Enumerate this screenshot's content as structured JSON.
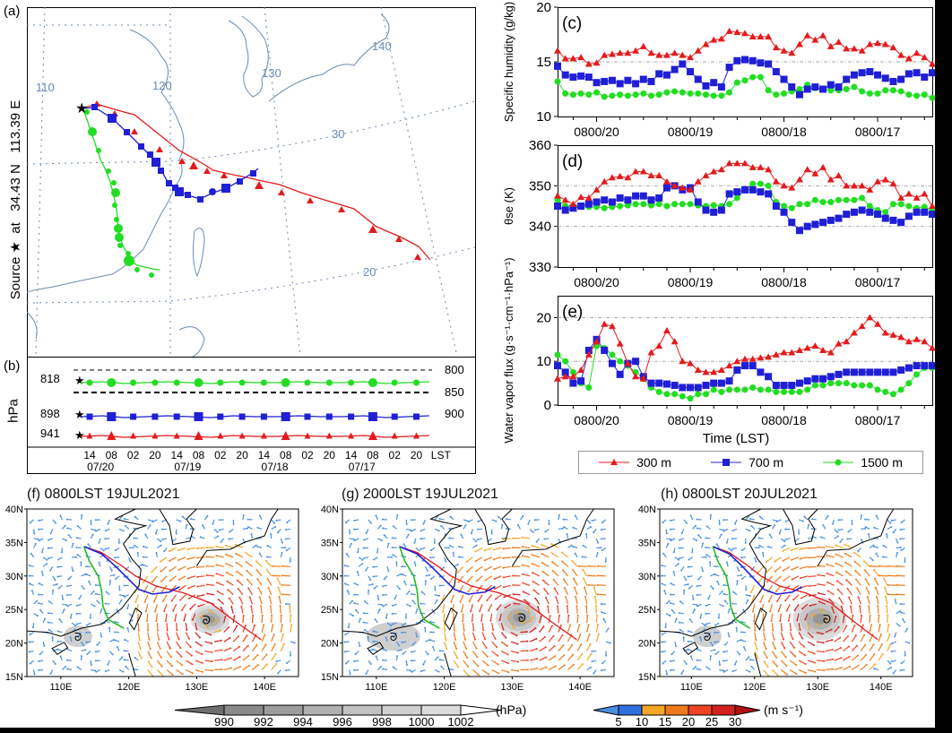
{
  "figure": {
    "panel_a": {
      "label": "(a)",
      "source_text": "Source ★  at   34.43 N   113.39 E",
      "grid_labels": {
        "lon": [
          "110",
          "120",
          "130",
          "140"
        ],
        "lat": [
          "30",
          "20"
        ]
      }
    },
    "panel_b": {
      "label": "(b)",
      "ylabel": "hPa",
      "start_pressures": [
        "818",
        "898",
        "941"
      ],
      "ref_levels": [
        "800",
        "850",
        "900"
      ],
      "hour_ticks": [
        "14",
        "08",
        "02",
        "20",
        "14",
        "08",
        "02",
        "20",
        "14",
        "08",
        "02",
        "20",
        "14",
        "08",
        "02",
        "20"
      ],
      "unit_label": "LST",
      "date_labels": [
        "07/20",
        "07/19",
        "07/18",
        "07/17"
      ]
    },
    "legend": {
      "entries": [
        {
          "label": "300 m",
          "color": "#e41a1c",
          "marker": "triangle"
        },
        {
          "label": "700 m",
          "color": "#1f1fd6",
          "marker": "square"
        },
        {
          "label": "1500 m",
          "color": "#22dd22",
          "marker": "circle"
        }
      ]
    },
    "panel_f": {
      "title": "(f) 0800LST 19JUL2021"
    },
    "panel_g": {
      "title": "(g) 2000LST 19JUL2021"
    },
    "panel_h": {
      "title": "(h) 0800LST 20JUL2021"
    },
    "map_axes": {
      "lat_labels": [
        "40N",
        "35N",
        "30N",
        "25N",
        "20N",
        "15N"
      ],
      "lon_labels": [
        "110E",
        "120E",
        "130E",
        "140E"
      ]
    },
    "colorbar_pressure": {
      "labels": [
        "990",
        "992",
        "994",
        "996",
        "998",
        "1000",
        "1002"
      ],
      "unit": "(hPa)",
      "colors": [
        "#6e6e6e",
        "#8a8a8a",
        "#9d9d9d",
        "#b0b0b0",
        "#c2c2c2",
        "#d0d0d0",
        "#dcdcdc",
        "#ffffff"
      ]
    },
    "colorbar_wind": {
      "labels": [
        "5",
        "10",
        "15",
        "20",
        "25",
        "30"
      ],
      "unit": "(m s⁻¹)",
      "colors": [
        "#4a90e2",
        "#2f6fe0",
        "#f5a623",
        "#f07a1a",
        "#ee4422",
        "#d42020",
        "#b01010"
      ]
    }
  },
  "chart_data": [
    {
      "id": "c",
      "type": "line",
      "title": "(c)",
      "xlabel": "",
      "ylabel": "Specific humidity (g/kg)",
      "ylim": [
        10,
        20
      ],
      "yticks": [
        10,
        15,
        20
      ],
      "grid_y": [
        15
      ],
      "x_unit": "hours backward from 1800LST 20 Jul",
      "xlim": [
        0,
        96
      ],
      "xtick_labels": [
        {
          "x": 10,
          "label": "0800/20"
        },
        {
          "x": 34,
          "label": "0800/19"
        },
        {
          "x": 58,
          "label": "0800/18"
        },
        {
          "x": 82,
          "label": "0800/17"
        }
      ],
      "x": [
        0,
        2,
        4,
        6,
        8,
        10,
        12,
        14,
        16,
        18,
        20,
        22,
        24,
        26,
        28,
        30,
        32,
        34,
        36,
        38,
        40,
        42,
        44,
        46,
        48,
        50,
        52,
        54,
        56,
        58,
        60,
        62,
        64,
        66,
        68,
        70,
        72,
        74,
        76,
        78,
        80,
        82,
        84,
        86,
        88,
        90,
        92,
        94,
        96
      ],
      "series": [
        {
          "name": "300 m",
          "values": [
            16.0,
            15.3,
            15.3,
            15.4,
            14.8,
            14.9,
            15.6,
            15.7,
            15.8,
            15.8,
            16.0,
            16.4,
            15.8,
            15.6,
            15.6,
            15.8,
            15.6,
            15.4,
            16.0,
            16.6,
            17.0,
            17.1,
            17.8,
            17.7,
            17.6,
            17.3,
            17.3,
            17.3,
            16.3,
            16.0,
            15.8,
            16.6,
            17.4,
            17.0,
            17.4,
            16.4,
            16.8,
            16.2,
            16.2,
            16.0,
            16.6,
            16.7,
            16.6,
            16.3,
            15.6,
            15.3,
            15.8,
            15.4,
            14.8
          ]
        },
        {
          "name": "700 m",
          "values": [
            14.6,
            13.8,
            13.6,
            13.7,
            13.6,
            13.1,
            13.2,
            13.3,
            13.0,
            13.3,
            13.0,
            13.4,
            13.2,
            13.9,
            13.8,
            14.3,
            14.8,
            14.1,
            13.4,
            12.8,
            13.1,
            12.7,
            14.5,
            15.1,
            15.2,
            15.1,
            14.9,
            14.8,
            14.1,
            13.4,
            12.7,
            12.0,
            12.5,
            12.7,
            12.5,
            12.9,
            12.7,
            13.4,
            13.8,
            14.0,
            14.1,
            13.8,
            13.5,
            13.2,
            13.4,
            13.9,
            14.0,
            13.6,
            14.0
          ]
        },
        {
          "name": "1500 m",
          "values": [
            13.2,
            12.1,
            12.0,
            12.1,
            12.0,
            12.2,
            11.8,
            11.9,
            12.0,
            11.9,
            12.0,
            12.1,
            11.9,
            12.0,
            12.2,
            12.3,
            12.2,
            12.1,
            12.1,
            12.0,
            11.9,
            11.9,
            12.2,
            13.1,
            13.3,
            13.6,
            13.6,
            12.4,
            12.0,
            12.1,
            12.3,
            12.5,
            12.9,
            12.6,
            12.5,
            12.4,
            12.4,
            12.5,
            12.7,
            12.3,
            12.1,
            12.1,
            12.4,
            12.4,
            12.3,
            12.0,
            11.9,
            12.0,
            11.7
          ]
        }
      ]
    },
    {
      "id": "d",
      "type": "line",
      "title": "(d)",
      "xlabel": "",
      "ylabel": "θse (K)",
      "ylim": [
        330,
        360
      ],
      "yticks": [
        330,
        340,
        350,
        360
      ],
      "grid_y": [
        340,
        350
      ],
      "x_unit": "hours backward from 1800LST 20 Jul",
      "xlim": [
        0,
        96
      ],
      "xtick_labels": [
        {
          "x": 10,
          "label": "0800/20"
        },
        {
          "x": 34,
          "label": "0800/19"
        },
        {
          "x": 58,
          "label": "0800/18"
        },
        {
          "x": 82,
          "label": "0800/17"
        }
      ],
      "x": [
        0,
        2,
        4,
        6,
        8,
        10,
        12,
        14,
        16,
        18,
        20,
        22,
        24,
        26,
        28,
        30,
        32,
        34,
        36,
        38,
        40,
        42,
        44,
        46,
        48,
        50,
        52,
        54,
        56,
        58,
        60,
        62,
        64,
        66,
        68,
        70,
        72,
        74,
        76,
        78,
        80,
        82,
        84,
        86,
        88,
        90,
        92,
        94,
        96
      ],
      "series": [
        {
          "name": "300 m",
          "values": [
            347.5,
            346.5,
            345.5,
            347.2,
            347.0,
            349.0,
            351.0,
            352.0,
            352.3,
            352.0,
            353.5,
            353.5,
            352.5,
            352.5,
            351.0,
            350.0,
            349.5,
            349.0,
            351.0,
            352.5,
            353.5,
            354.0,
            355.5,
            355.5,
            355.5,
            354.5,
            354.5,
            354.0,
            351.0,
            350.0,
            349.5,
            351.5,
            354.0,
            353.0,
            354.5,
            351.5,
            352.5,
            350.0,
            350.0,
            350.0,
            349.0,
            351.0,
            351.5,
            350.5,
            347.0,
            348.0,
            347.0,
            348.0,
            345.0
          ]
        },
        {
          "name": "700 m",
          "values": [
            345.0,
            344.0,
            344.5,
            345.0,
            345.5,
            346.0,
            346.5,
            346.0,
            347.0,
            346.5,
            347.5,
            347.5,
            346.5,
            347.0,
            349.5,
            350.0,
            349.0,
            349.5,
            346.0,
            344.0,
            343.5,
            344.0,
            348.0,
            348.5,
            349.0,
            349.0,
            348.5,
            348.0,
            345.0,
            343.5,
            341.0,
            339.0,
            340.0,
            340.5,
            341.0,
            341.5,
            342.0,
            343.0,
            343.5,
            344.0,
            343.5,
            343.0,
            342.0,
            341.5,
            341.0,
            342.5,
            343.5,
            343.5,
            343.0
          ]
        },
        {
          "name": "1500 m",
          "values": [
            346.5,
            345.0,
            345.0,
            345.0,
            344.8,
            344.8,
            344.5,
            344.8,
            345.0,
            345.2,
            345.5,
            345.5,
            345.2,
            345.5,
            345.0,
            345.5,
            345.5,
            345.5,
            345.2,
            345.0,
            345.2,
            345.0,
            345.5,
            347.0,
            349.0,
            350.5,
            350.5,
            350.0,
            346.0,
            345.0,
            344.5,
            345.5,
            345.5,
            346.5,
            346.0,
            346.0,
            346.5,
            346.5,
            346.5,
            347.0,
            345.0,
            344.0,
            343.5,
            345.5,
            345.5,
            345.0,
            344.5,
            344.8,
            344.0
          ]
        }
      ]
    },
    {
      "id": "e",
      "type": "line",
      "title": "(e)",
      "xlabel": "Time (LST)",
      "ylabel": "Water vapor flux (g·s⁻¹·cm⁻¹·hPa⁻¹)",
      "ylim": [
        0,
        25
      ],
      "yticks": [
        0,
        10,
        20
      ],
      "grid_y": [
        10,
        20
      ],
      "x_unit": "hours backward from 1800LST 20 Jul",
      "xlim": [
        0,
        96
      ],
      "xtick_labels": [
        {
          "x": 10,
          "label": "0800/20"
        },
        {
          "x": 34,
          "label": "0800/19"
        },
        {
          "x": 58,
          "label": "0800/18"
        },
        {
          "x": 82,
          "label": "0800/17"
        }
      ],
      "x": [
        0,
        2,
        4,
        6,
        8,
        10,
        12,
        14,
        16,
        18,
        20,
        22,
        24,
        26,
        28,
        30,
        32,
        34,
        36,
        38,
        40,
        42,
        44,
        46,
        48,
        50,
        52,
        54,
        56,
        58,
        60,
        62,
        64,
        66,
        68,
        70,
        72,
        74,
        76,
        78,
        80,
        82,
        84,
        86,
        88,
        90,
        92,
        94,
        96
      ],
      "series": [
        {
          "name": "300 m",
          "values": [
            6.0,
            6.5,
            6.5,
            8.0,
            11.5,
            14.5,
            18.5,
            18.0,
            14.0,
            9.5,
            6.5,
            6.0,
            12.0,
            13.5,
            17.0,
            14.5,
            10.0,
            9.5,
            8.0,
            7.5,
            7.5,
            8.0,
            9.0,
            10.0,
            10.5,
            10.5,
            10.8,
            11.0,
            11.5,
            12.0,
            12.0,
            12.5,
            13.0,
            13.5,
            12.5,
            12.0,
            14.0,
            14.5,
            16.5,
            18.0,
            20.0,
            18.5,
            16.5,
            16.0,
            15.5,
            14.5,
            15.0,
            14.5,
            13.0
          ]
        },
        {
          "name": "700 m",
          "values": [
            9.0,
            7.5,
            5.0,
            5.5,
            12.5,
            15.0,
            12.5,
            9.5,
            7.0,
            9.5,
            10.0,
            6.5,
            5.0,
            5.0,
            4.8,
            4.5,
            4.0,
            4.0,
            4.0,
            4.5,
            5.0,
            5.0,
            5.5,
            8.0,
            9.0,
            9.0,
            7.5,
            6.5,
            4.5,
            4.5,
            4.5,
            5.0,
            5.5,
            6.0,
            6.0,
            6.5,
            7.0,
            7.5,
            7.5,
            7.5,
            7.5,
            7.5,
            7.5,
            7.5,
            8.0,
            8.5,
            9.0,
            9.0,
            9.0
          ]
        },
        {
          "name": "1500 m",
          "values": [
            11.5,
            10.0,
            7.5,
            5.0,
            4.0,
            13.5,
            13.0,
            11.5,
            10.0,
            9.0,
            7.5,
            6.0,
            4.0,
            3.0,
            2.5,
            2.5,
            2.0,
            1.5,
            2.5,
            2.5,
            3.5,
            3.0,
            3.5,
            3.5,
            3.5,
            4.0,
            3.5,
            3.5,
            3.0,
            3.0,
            3.0,
            3.0,
            3.5,
            4.5,
            4.5,
            5.0,
            5.0,
            5.0,
            4.5,
            4.5,
            4.5,
            3.5,
            3.0,
            2.5,
            3.5,
            5.0,
            7.0,
            8.5,
            8.5
          ]
        }
      ]
    }
  ]
}
